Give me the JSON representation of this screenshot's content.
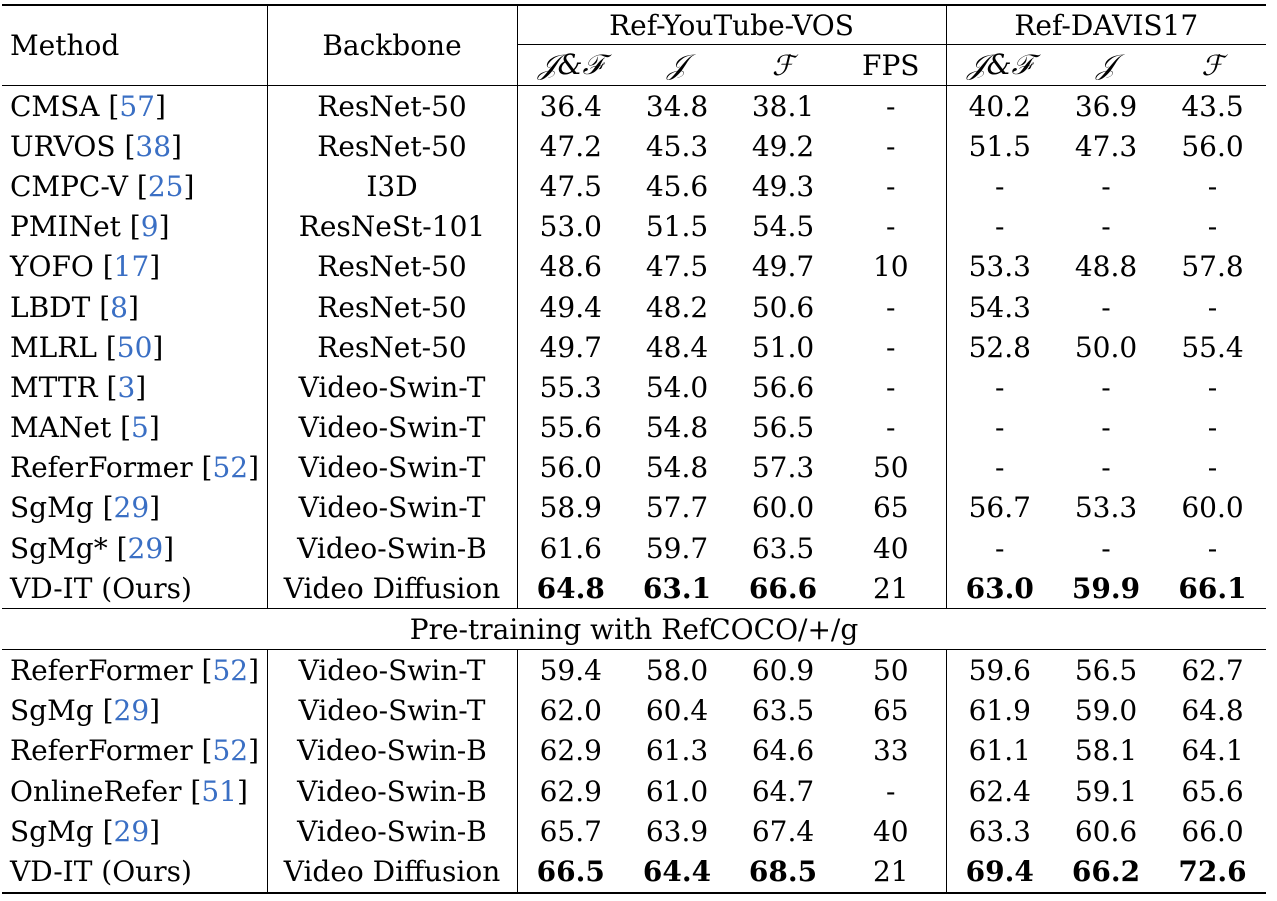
{
  "headers": {
    "method": "Method",
    "backbone": "Backbone",
    "group1": "Ref-YouTube-VOS",
    "group2": "Ref-DAVIS17",
    "metrics1": [
      "𝒥&ℱ",
      "𝒥",
      "ℱ",
      "FPS"
    ],
    "metrics2": [
      "𝒥&ℱ",
      "𝒥",
      "ℱ"
    ]
  },
  "section_label": "Pre-training with RefCOCO/+/g",
  "rows_main": [
    {
      "method": "CMSA",
      "ref": "57",
      "backbone": "ResNet-50",
      "yt": [
        "36.4",
        "34.8",
        "38.1",
        "-"
      ],
      "davis": [
        "40.2",
        "36.9",
        "43.5"
      ]
    },
    {
      "method": "URVOS",
      "ref": "38",
      "backbone": "ResNet-50",
      "yt": [
        "47.2",
        "45.3",
        "49.2",
        "-"
      ],
      "davis": [
        "51.5",
        "47.3",
        "56.0"
      ]
    },
    {
      "method": "CMPC-V",
      "ref": "25",
      "backbone": "I3D",
      "yt": [
        "47.5",
        "45.6",
        "49.3",
        "-"
      ],
      "davis": [
        "-",
        "-",
        "-"
      ]
    },
    {
      "method": "PMINet",
      "ref": "9",
      "backbone": "ResNeSt-101",
      "yt": [
        "53.0",
        "51.5",
        "54.5",
        "-"
      ],
      "davis": [
        "-",
        "-",
        "-"
      ]
    },
    {
      "method": "YOFO",
      "ref": "17",
      "backbone": "ResNet-50",
      "yt": [
        "48.6",
        "47.5",
        "49.7",
        "10"
      ],
      "davis": [
        "53.3",
        "48.8",
        "57.8"
      ]
    },
    {
      "method": "LBDT",
      "ref": "8",
      "backbone": "ResNet-50",
      "yt": [
        "49.4",
        "48.2",
        "50.6",
        "-"
      ],
      "davis": [
        "54.3",
        "-",
        "-"
      ]
    },
    {
      "method": "MLRL",
      "ref": "50",
      "backbone": "ResNet-50",
      "yt": [
        "49.7",
        "48.4",
        "51.0",
        "-"
      ],
      "davis": [
        "52.8",
        "50.0",
        "55.4"
      ]
    },
    {
      "method": "MTTR",
      "ref": "3",
      "backbone": "Video-Swin-T",
      "yt": [
        "55.3",
        "54.0",
        "56.6",
        "-"
      ],
      "davis": [
        "-",
        "-",
        "-"
      ]
    },
    {
      "method": "MANet",
      "ref": "5",
      "backbone": "Video-Swin-T",
      "yt": [
        "55.6",
        "54.8",
        "56.5",
        "-"
      ],
      "davis": [
        "-",
        "-",
        "-"
      ]
    },
    {
      "method": "ReferFormer",
      "ref": "52",
      "backbone": "Video-Swin-T",
      "yt": [
        "56.0",
        "54.8",
        "57.3",
        "50"
      ],
      "davis": [
        "-",
        "-",
        "-"
      ]
    },
    {
      "method": "SgMg",
      "ref": "29",
      "backbone": "Video-Swin-T",
      "yt": [
        "58.9",
        "57.7",
        "60.0",
        "65"
      ],
      "davis": [
        "56.7",
        "53.3",
        "60.0"
      ]
    },
    {
      "method": "SgMg*",
      "ref": "29",
      "backbone": "Video-Swin-B",
      "yt": [
        "61.6",
        "59.7",
        "63.5",
        "40"
      ],
      "davis": [
        "-",
        "-",
        "-"
      ]
    },
    {
      "method": "VD-IT (Ours)",
      "ref": "",
      "backbone": "Video Diffusion",
      "yt": [
        "64.8",
        "63.1",
        "66.6",
        "21"
      ],
      "davis": [
        "63.0",
        "59.9",
        "66.1"
      ],
      "bold": true
    }
  ],
  "rows_pretrain": [
    {
      "method": "ReferFormer",
      "ref": "52",
      "backbone": "Video-Swin-T",
      "yt": [
        "59.4",
        "58.0",
        "60.9",
        "50"
      ],
      "davis": [
        "59.6",
        "56.5",
        "62.7"
      ]
    },
    {
      "method": "SgMg",
      "ref": "29",
      "backbone": "Video-Swin-T",
      "yt": [
        "62.0",
        "60.4",
        "63.5",
        "65"
      ],
      "davis": [
        "61.9",
        "59.0",
        "64.8"
      ]
    },
    {
      "method": "ReferFormer",
      "ref": "52",
      "backbone": "Video-Swin-B",
      "yt": [
        "62.9",
        "61.3",
        "64.6",
        "33"
      ],
      "davis": [
        "61.1",
        "58.1",
        "64.1"
      ]
    },
    {
      "method": "OnlineRefer",
      "ref": "51",
      "backbone": "Video-Swin-B",
      "yt": [
        "62.9",
        "61.0",
        "64.7",
        "-"
      ],
      "davis": [
        "62.4",
        "59.1",
        "65.6"
      ]
    },
    {
      "method": "SgMg",
      "ref": "29",
      "backbone": "Video-Swin-B",
      "yt": [
        "65.7",
        "63.9",
        "67.4",
        "40"
      ],
      "davis": [
        "63.3",
        "60.6",
        "66.0"
      ]
    },
    {
      "method": "VD-IT (Ours)",
      "ref": "",
      "backbone": "Video Diffusion",
      "yt": [
        "66.5",
        "64.4",
        "68.5",
        "21"
      ],
      "davis": [
        "69.4",
        "66.2",
        "72.6"
      ],
      "bold": true
    }
  ]
}
